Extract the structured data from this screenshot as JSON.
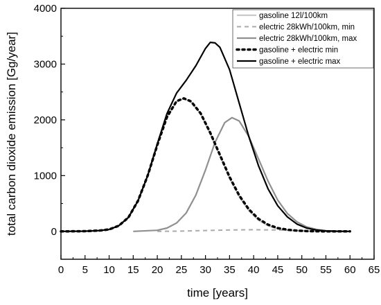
{
  "chart_data": {
    "type": "line",
    "title": "",
    "xlabel": "time  [years]",
    "ylabel": "total carbon dioxide emission  [Gg/year]",
    "xlim": [
      0,
      65
    ],
    "ylim": [
      -500,
      4000
    ],
    "x_ticks": [
      "0",
      "5",
      "10",
      "15",
      "20",
      "25",
      "30",
      "35",
      "40",
      "45",
      "50",
      "55",
      "60",
      "65"
    ],
    "y_ticks": [
      "0",
      "1000",
      "2000",
      "3000",
      "4000"
    ],
    "grid": false,
    "legend_position": "top-right",
    "series": [
      {
        "name": "gasoline 12l/100km",
        "color": "#c8c8c8",
        "style": "solid",
        "x": [
          0,
          5,
          8,
          10,
          12,
          14,
          16,
          18,
          20,
          22,
          24,
          25.5,
          27,
          29,
          31,
          33,
          35,
          37,
          39,
          41,
          43,
          45,
          47,
          49,
          51,
          53,
          55,
          60
        ],
        "y": [
          0,
          3,
          15,
          35,
          100,
          250,
          550,
          1000,
          1550,
          2050,
          2330,
          2380,
          2320,
          2100,
          1750,
          1350,
          950,
          620,
          370,
          200,
          100,
          45,
          20,
          8,
          3,
          1,
          0,
          0
        ]
      },
      {
        "name": "electric 28kWh/100km, min",
        "color": "#aaaaaa",
        "style": "dashed",
        "x": [
          20,
          25,
          30,
          35,
          40,
          45,
          50,
          55,
          60
        ],
        "y": [
          0,
          5,
          15,
          25,
          30,
          25,
          15,
          5,
          0
        ]
      },
      {
        "name": "electric 28kWh/100km, max",
        "color": "#8f8f8f",
        "style": "solid",
        "x": [
          15,
          20,
          22,
          24,
          26,
          28,
          30,
          32,
          34,
          35.5,
          37,
          39,
          41,
          43,
          45,
          47,
          49,
          51,
          53,
          55,
          57,
          60
        ],
        "y": [
          0,
          20,
          60,
          150,
          330,
          650,
          1100,
          1600,
          1950,
          2040,
          1980,
          1700,
          1300,
          900,
          560,
          320,
          170,
          80,
          35,
          12,
          4,
          0
        ]
      },
      {
        "name": "gasoline + electric min",
        "color": "#000000",
        "style": "dotted",
        "x": [
          0,
          5,
          8,
          10,
          12,
          14,
          16,
          18,
          20,
          22,
          24,
          25.5,
          27,
          29,
          31,
          33,
          35,
          37,
          39,
          41,
          43,
          45,
          47,
          49,
          51,
          53,
          55,
          60
        ],
        "y": [
          0,
          3,
          15,
          35,
          100,
          250,
          550,
          1000,
          1550,
          2050,
          2335,
          2385,
          2330,
          2115,
          1765,
          1370,
          975,
          645,
          395,
          225,
          120,
          60,
          30,
          13,
          5,
          2,
          0,
          0
        ]
      },
      {
        "name": "gasoline + electric max",
        "color": "#000000",
        "style": "solid",
        "x": [
          0,
          5,
          8,
          10,
          12,
          14,
          16,
          18,
          20,
          22,
          24,
          26,
          28,
          30,
          31,
          32,
          33,
          35,
          37,
          39,
          41,
          43,
          45,
          47,
          49,
          51,
          53,
          55,
          57,
          60
        ],
        "y": [
          0,
          3,
          15,
          35,
          100,
          250,
          550,
          1000,
          1570,
          2110,
          2480,
          2710,
          2970,
          3280,
          3390,
          3380,
          3300,
          2900,
          2300,
          1700,
          1180,
          760,
          460,
          260,
          130,
          60,
          25,
          8,
          3,
          0
        ]
      }
    ]
  }
}
